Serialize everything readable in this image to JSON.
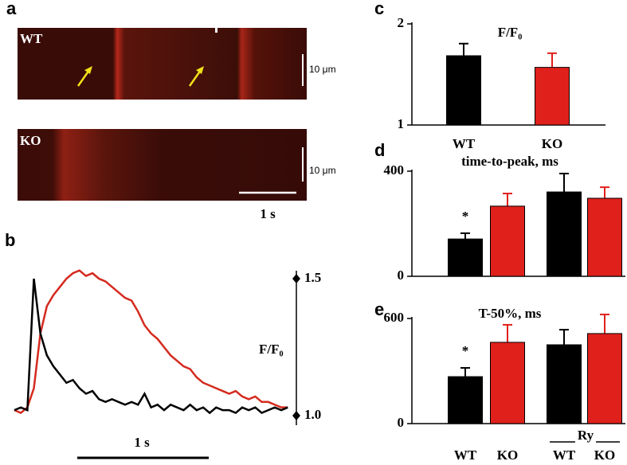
{
  "panels": {
    "a": "a",
    "b": "b",
    "c": "c",
    "d": "d",
    "e": "e"
  },
  "images": {
    "top_label": "WT",
    "bottom_label": "KO",
    "top_scale": "10 μm",
    "bottom_scale": "10 μm",
    "time_scale": "1 s"
  },
  "chart_data": [
    {
      "type": "line",
      "y_label": "F/F₀",
      "time_scale": "1 s",
      "x": [
        0,
        0.05,
        0.1,
        0.15,
        0.2,
        0.25,
        0.3,
        0.35,
        0.4,
        0.45,
        0.5,
        0.55,
        0.6,
        0.65,
        0.7,
        0.75,
        0.8,
        0.85,
        0.9,
        0.95,
        1.0,
        1.05,
        1.1,
        1.15,
        1.2,
        1.25,
        1.3,
        1.35,
        1.4,
        1.45,
        1.5,
        1.55,
        1.6,
        1.65,
        1.7,
        1.75,
        1.8,
        1.85,
        1.9,
        1.95,
        2.0,
        2.05,
        2.1
      ],
      "xlim": [
        0,
        2.12
      ],
      "ylim": [
        1,
        1.5
      ],
      "yticks": [
        {
          "value": 1,
          "label": "1.0"
        },
        1.5
      ],
      "series": [
        {
          "color": "#d42a1e",
          "values": [
            1.02,
            1.01,
            1.03,
            1.1,
            1.3,
            1.4,
            1.44,
            1.47,
            1.5,
            1.52,
            1.53,
            1.51,
            1.52,
            1.5,
            1.49,
            1.47,
            1.45,
            1.43,
            1.42,
            1.38,
            1.33,
            1.3,
            1.28,
            1.25,
            1.22,
            1.2,
            1.18,
            1.17,
            1.14,
            1.12,
            1.11,
            1.1,
            1.09,
            1.08,
            1.09,
            1.07,
            1.06,
            1.07,
            1.05,
            1.05,
            1.04,
            1.03,
            1.03
          ]
        },
        {
          "color": "#000000",
          "values": [
            1.02,
            1.03,
            1.02,
            1.5,
            1.3,
            1.22,
            1.18,
            1.15,
            1.12,
            1.13,
            1.1,
            1.08,
            1.09,
            1.06,
            1.05,
            1.06,
            1.05,
            1.04,
            1.05,
            1.04,
            1.08,
            1.03,
            1.04,
            1.02,
            1.04,
            1.03,
            1.02,
            1.04,
            1.02,
            1.03,
            1.01,
            1.03,
            1.02,
            1.02,
            1.01,
            1.03,
            1.02,
            1.03,
            1.01,
            1.02,
            1.03,
            1.02,
            1.03
          ]
        }
      ]
    },
    {
      "type": "bar",
      "title": "F/F₀",
      "categories": [
        "WT",
        "KO"
      ],
      "values": [
        1.685,
        1.57
      ],
      "errors": [
        0.12,
        0.14
      ],
      "colors": [
        "#000000",
        "#e0201b"
      ],
      "ylim": [
        1,
        2
      ],
      "yticks": [
        1,
        2
      ]
    },
    {
      "type": "bar",
      "title": "time-to-peak, ms",
      "categories": [
        null,
        null,
        null,
        null
      ],
      "values": [
        142,
        267,
        321,
        297
      ],
      "errors": [
        22,
        48,
        70,
        42
      ],
      "colors": [
        "#000000",
        "#e0201b",
        "#000000",
        "#e0201b"
      ],
      "ylim": [
        0,
        400
      ],
      "yticks": [
        0,
        400
      ],
      "annotation": "*"
    },
    {
      "type": "bar",
      "title": "T-50%, ms",
      "categories": [
        "WT",
        "KO",
        "WT",
        "KO"
      ],
      "group_label": "Ry",
      "values": [
        268,
        464,
        450,
        514
      ],
      "errors": [
        50,
        100,
        86,
        109
      ],
      "colors": [
        "#000000",
        "#e0201b",
        "#000000",
        "#e0201b"
      ],
      "ylim": [
        0,
        600
      ],
      "yticks": [
        0,
        600
      ],
      "annotation": "*"
    }
  ]
}
